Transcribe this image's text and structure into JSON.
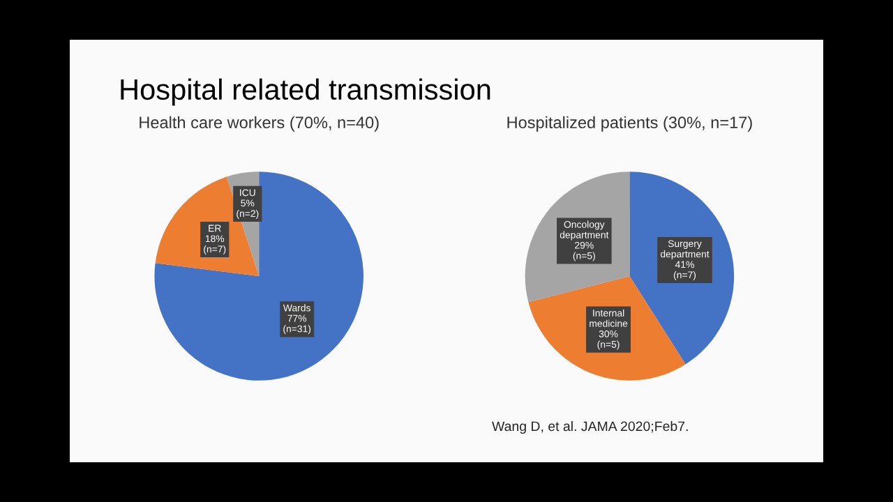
{
  "chart_data": [
    {
      "type": "other",
      "title": "Hospital related transmission",
      "annotations": [
        "Wang D, et al. JAMA 2020;Feb7."
      ]
    },
    {
      "type": "pie",
      "title": "Health care workers (70%, n=40)",
      "categories": [
        "Wards",
        "ER",
        "ICU"
      ],
      "values": [
        77,
        18,
        5
      ],
      "value_labels": [
        "77%\n(n=31)",
        "18%\n(n=7)",
        "5%\n(n=2)"
      ],
      "colors": [
        "#4472c4",
        "#ed7d31",
        "#a5a5a5"
      ]
    },
    {
      "type": "pie",
      "title": "Hospitalized patients (30%, n=17)",
      "categories": [
        "Surgery\ndepartment",
        "Internal\nmedicine",
        "Oncology\ndepartment"
      ],
      "values": [
        41,
        30,
        29
      ],
      "value_labels": [
        "41%\n(n=7)",
        "30%\n(n=5)",
        "29%\n(n=5)"
      ],
      "colors": [
        "#4472c4",
        "#ed7d31",
        "#a5a5a5"
      ]
    }
  ]
}
